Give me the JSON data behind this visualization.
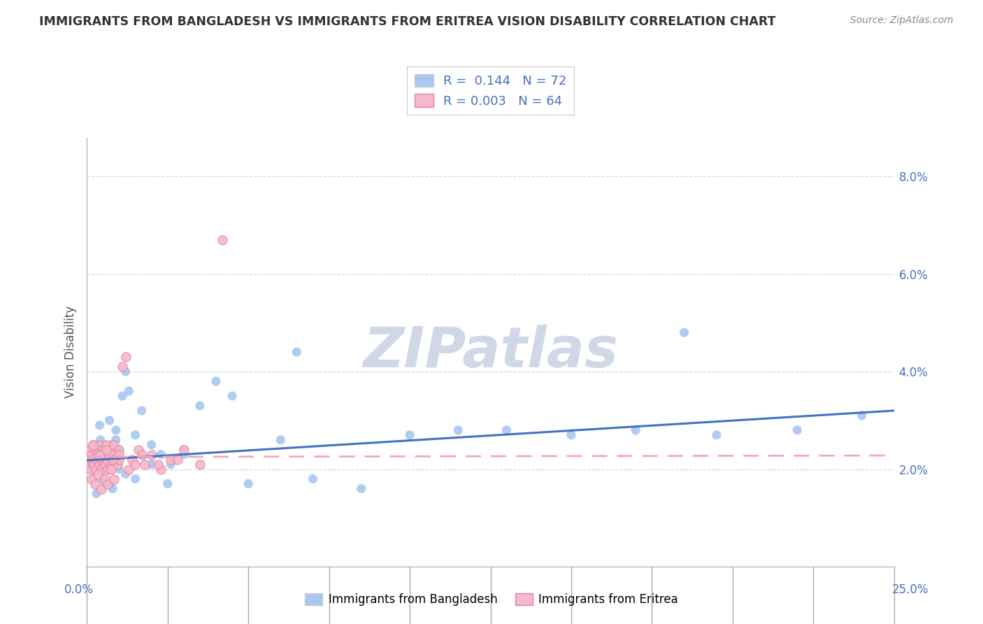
{
  "title": "IMMIGRANTS FROM BANGLADESH VS IMMIGRANTS FROM ERITREA VISION DISABILITY CORRELATION CHART",
  "source": "Source: ZipAtlas.com",
  "ylabel": "Vision Disability",
  "xlim": [
    0.0,
    25.0
  ],
  "ylim": [
    0.0,
    8.8
  ],
  "yticks": [
    2.0,
    4.0,
    6.0,
    8.0
  ],
  "ytick_labels": [
    "2.0%",
    "4.0%",
    "6.0%",
    "8.0%"
  ],
  "background_color": "#ffffff",
  "color_blue": "#a8c8f0",
  "color_pink": "#f5b8cc",
  "color_blue_dark": "#4472c4",
  "color_pink_dark": "#e8829a",
  "trend_blue_color": "#4472c4",
  "trend_pink_color": "#f0a8bc",
  "grid_color": "#d0d8e8",
  "axis_color": "#aaaaaa",
  "text_color": "#333333",
  "source_color": "#888888",
  "watermark_color": "#d0d8e8",
  "legend_edge_color": "#cccccc",
  "xlabel_color": "#4472c4",
  "legend_R1": "R =  0.144",
  "legend_N1": "N = 72",
  "legend_R2": "R = 0.003",
  "legend_N2": "N = 64",
  "legend_label1": "Immigrants from Bangladesh",
  "legend_label2": "Immigrants from Eritrea",
  "bangladesh_x": [
    0.05,
    0.08,
    0.1,
    0.12,
    0.15,
    0.17,
    0.2,
    0.22,
    0.25,
    0.27,
    0.3,
    0.32,
    0.35,
    0.38,
    0.4,
    0.42,
    0.45,
    0.47,
    0.5,
    0.52,
    0.55,
    0.58,
    0.6,
    0.62,
    0.65,
    0.68,
    0.7,
    0.75,
    0.8,
    0.85,
    0.9,
    0.95,
    1.0,
    1.1,
    1.2,
    1.3,
    1.5,
    1.7,
    2.0,
    2.3,
    2.6,
    3.0,
    3.5,
    4.0,
    5.0,
    6.0,
    7.0,
    8.5,
    10.0,
    11.5,
    13.0,
    15.0,
    17.0,
    19.5,
    22.0,
    24.0,
    0.3,
    0.5,
    0.6,
    0.8,
    1.0,
    1.2,
    1.5,
    2.0,
    2.5,
    3.0,
    4.5,
    6.5,
    18.5,
    0.4,
    0.7,
    0.9
  ],
  "bangladesh_y": [
    2.2,
    2.1,
    2.3,
    2.0,
    2.4,
    2.1,
    2.5,
    2.2,
    2.3,
    2.0,
    2.4,
    2.1,
    2.3,
    2.5,
    2.2,
    2.6,
    2.3,
    2.1,
    2.4,
    2.2,
    2.5,
    2.3,
    2.1,
    2.4,
    2.2,
    2.0,
    2.3,
    2.5,
    2.4,
    2.2,
    2.6,
    2.3,
    2.4,
    3.5,
    4.0,
    3.6,
    2.7,
    3.2,
    2.5,
    2.3,
    2.1,
    2.4,
    3.3,
    3.8,
    1.7,
    2.6,
    1.8,
    1.6,
    2.7,
    2.8,
    2.8,
    2.7,
    2.8,
    2.7,
    2.8,
    3.1,
    1.5,
    1.8,
    1.7,
    1.6,
    2.0,
    1.9,
    1.8,
    2.1,
    1.7,
    2.3,
    3.5,
    4.4,
    4.8,
    2.9,
    3.0,
    2.8
  ],
  "eritrea_x": [
    0.02,
    0.05,
    0.08,
    0.1,
    0.12,
    0.15,
    0.18,
    0.2,
    0.22,
    0.25,
    0.28,
    0.3,
    0.32,
    0.35,
    0.38,
    0.4,
    0.42,
    0.45,
    0.48,
    0.5,
    0.52,
    0.55,
    0.58,
    0.6,
    0.62,
    0.65,
    0.68,
    0.7,
    0.75,
    0.8,
    0.85,
    0.9,
    0.95,
    1.0,
    1.1,
    1.2,
    1.4,
    1.6,
    1.8,
    2.0,
    2.3,
    2.6,
    3.0,
    3.5,
    0.15,
    0.25,
    0.35,
    0.45,
    0.55,
    0.65,
    0.75,
    0.85,
    1.0,
    1.3,
    1.7,
    2.2,
    2.8,
    0.2,
    0.4,
    0.6,
    0.8,
    1.0,
    4.2,
    1.5
  ],
  "eritrea_y": [
    2.3,
    2.1,
    2.4,
    2.2,
    2.0,
    2.3,
    2.5,
    2.2,
    2.1,
    2.4,
    2.0,
    2.2,
    2.4,
    2.3,
    2.1,
    2.5,
    2.2,
    2.0,
    2.3,
    2.4,
    2.2,
    2.1,
    2.3,
    2.5,
    2.2,
    2.0,
    2.3,
    2.4,
    2.1,
    2.3,
    2.5,
    2.2,
    2.1,
    2.4,
    4.1,
    4.3,
    2.2,
    2.4,
    2.1,
    2.3,
    2.0,
    2.2,
    2.4,
    2.1,
    1.8,
    1.7,
    1.9,
    1.6,
    1.8,
    1.7,
    2.0,
    1.8,
    2.2,
    2.0,
    2.3,
    2.1,
    2.2,
    2.5,
    2.3,
    2.4,
    2.2,
    2.3,
    6.7,
    2.1
  ],
  "trend_bang_x0": 0.0,
  "trend_bang_x1": 25.0,
  "trend_bang_y0": 2.18,
  "trend_bang_y1": 3.2,
  "trend_erit_x0": 0.0,
  "trend_erit_x1": 25.0,
  "trend_erit_y0": 2.25,
  "trend_erit_y1": 2.28
}
